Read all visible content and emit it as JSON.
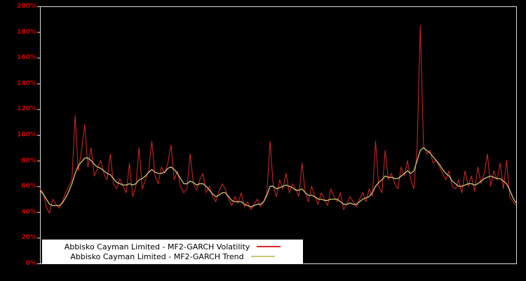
{
  "figure": {
    "background": "#000000",
    "plot_border_color": "#d9d9d9"
  },
  "colors": {
    "volatility_line": "#d62728",
    "trend_line": "#cdc673",
    "axis_label": "#cc0000"
  },
  "legend": {
    "items": [
      {
        "label": "Abbisko Cayman Limited - MF2-GARCH Volatility",
        "color": "#d62728"
      },
      {
        "label": "Abbisko Cayman Limited - MF2-GARCH Trend",
        "color": "#cdc673"
      }
    ]
  },
  "y_axis": {
    "tick_labels": [
      "0%",
      "20%",
      "40%",
      "60%",
      "80%",
      "100%",
      "120%",
      "140%",
      "160%",
      "180%",
      "200%"
    ],
    "tick_values": [
      0,
      20,
      40,
      60,
      80,
      100,
      120,
      140,
      160,
      180,
      200
    ]
  },
  "chart_data": {
    "type": "line",
    "title": "",
    "xlabel": "",
    "ylabel": "",
    "ylim": [
      0,
      200
    ],
    "y_tick_step": 20,
    "grid": false,
    "legend_position": "bottom-left",
    "series": [
      {
        "name": "Abbisko Cayman Limited - MF2-GARCH Volatility",
        "color": "#d62728",
        "values": [
          58,
          55,
          44,
          39,
          50,
          46,
          43,
          48,
          55,
          60,
          65,
          115,
          72,
          88,
          108,
          75,
          90,
          68,
          74,
          80,
          70,
          65,
          85,
          62,
          58,
          66,
          60,
          55,
          78,
          52,
          60,
          90,
          58,
          65,
          72,
          95,
          68,
          62,
          75,
          70,
          78,
          92,
          65,
          72,
          60,
          55,
          58,
          85,
          62,
          57,
          65,
          70,
          55,
          60,
          52,
          48,
          56,
          62,
          58,
          50,
          45,
          52,
          47,
          55,
          44,
          48,
          42,
          46,
          50,
          44,
          48,
          55,
          95,
          60,
          52,
          65,
          58,
          70,
          55,
          62,
          58,
          52,
          78,
          55,
          48,
          60,
          52,
          46,
          55,
          50,
          45,
          58,
          52,
          48,
          55,
          42,
          46,
          52,
          48,
          44,
          50,
          55,
          48,
          58,
          52,
          95,
          60,
          55,
          88,
          65,
          70,
          62,
          58,
          75,
          68,
          80,
          65,
          58,
          90,
          185,
          92,
          85,
          88,
          78,
          80,
          75,
          70,
          65,
          72,
          60,
          58,
          65,
          55,
          72,
          60,
          68,
          56,
          75,
          62,
          70,
          85,
          60,
          72,
          65,
          78,
          58,
          80,
          52,
          48,
          45
        ]
      },
      {
        "name": "Abbisko Cayman Limited - MF2-GARCH Trend",
        "color": "#cdc673",
        "values": [
          57,
          54,
          50,
          46,
          45,
          45,
          45,
          47,
          51,
          56,
          62,
          70,
          76,
          79,
          82,
          82,
          80,
          77,
          75,
          74,
          72,
          70,
          69,
          66,
          63,
          62,
          61,
          61,
          62,
          61,
          62,
          65,
          66,
          68,
          71,
          73,
          71,
          70,
          70,
          71,
          74,
          75,
          73,
          70,
          66,
          62,
          62,
          64,
          63,
          61,
          62,
          62,
          60,
          57,
          54,
          52,
          53,
          55,
          55,
          52,
          49,
          48,
          48,
          48,
          46,
          45,
          44,
          45,
          46,
          46,
          48,
          53,
          60,
          60,
          58,
          59,
          60,
          61,
          60,
          59,
          57,
          57,
          58,
          55,
          53,
          53,
          52,
          50,
          50,
          49,
          49,
          50,
          50,
          50,
          48,
          46,
          46,
          47,
          46,
          46,
          48,
          50,
          51,
          52,
          55,
          60,
          63,
          65,
          68,
          67,
          67,
          66,
          66,
          68,
          70,
          72,
          70,
          72,
          80,
          88,
          90,
          88,
          86,
          83,
          80,
          77,
          73,
          70,
          68,
          64,
          62,
          60,
          60,
          61,
          62,
          62,
          61,
          62,
          64,
          66,
          67,
          68,
          67,
          66,
          66,
          64,
          62,
          57,
          51,
          47
        ]
      }
    ]
  }
}
